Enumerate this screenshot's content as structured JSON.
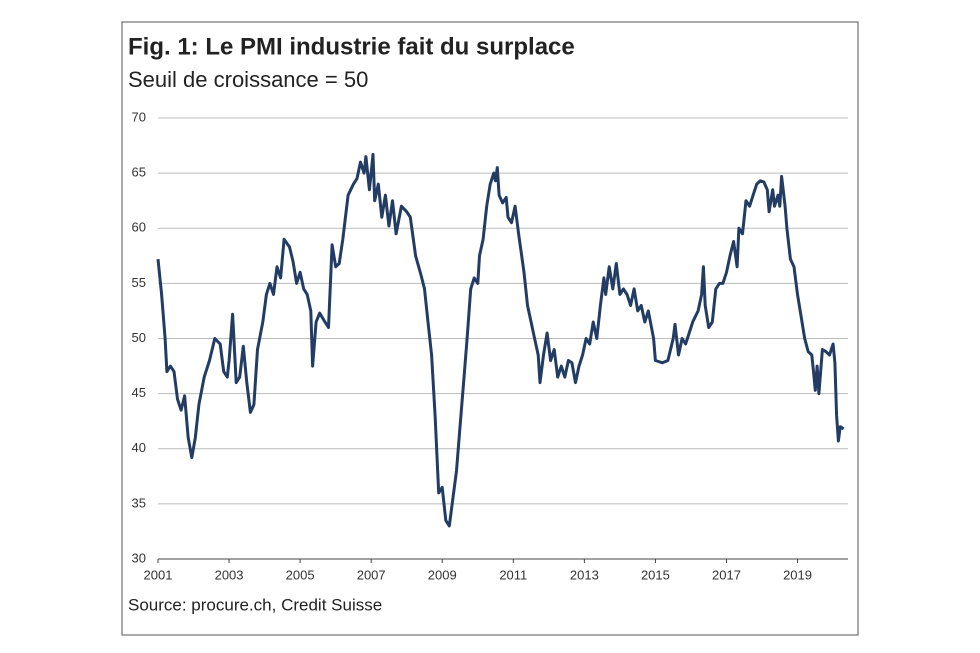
{
  "chart_data": {
    "type": "line",
    "title": "Fig. 1: Le PMI industrie fait du surplace",
    "subtitle": "Seuil de croissance = 50",
    "source": "Source: procure.ch, Credit Suisse",
    "x": [
      2001.0,
      2001.1,
      2001.2,
      2001.25,
      2001.35,
      2001.45,
      2001.55,
      2001.65,
      2001.75,
      2001.85,
      2001.95,
      2002.05,
      2002.15,
      2002.3,
      2002.45,
      2002.6,
      2002.75,
      2002.85,
      2002.95,
      2003.0,
      2003.1,
      2003.2,
      2003.3,
      2003.4,
      2003.5,
      2003.6,
      2003.7,
      2003.8,
      2003.95,
      2004.05,
      2004.15,
      2004.25,
      2004.35,
      2004.45,
      2004.55,
      2004.7,
      2004.8,
      2004.9,
      2005.0,
      2005.1,
      2005.2,
      2005.3,
      2005.35,
      2005.45,
      2005.55,
      2005.7,
      2005.8,
      2005.9,
      2006.0,
      2006.1,
      2006.2,
      2006.35,
      2006.5,
      2006.6,
      2006.7,
      2006.8,
      2006.85,
      2006.95,
      2007.05,
      2007.1,
      2007.2,
      2007.3,
      2007.4,
      2007.5,
      2007.6,
      2007.7,
      2007.85,
      2008.0,
      2008.1,
      2008.25,
      2008.4,
      2008.5,
      2008.6,
      2008.7,
      2008.8,
      2008.9,
      2009.0,
      2009.1,
      2009.2,
      2009.3,
      2009.4,
      2009.5,
      2009.6,
      2009.7,
      2009.8,
      2009.9,
      2010.0,
      2010.05,
      2010.15,
      2010.25,
      2010.35,
      2010.45,
      2010.5,
      2010.55,
      2010.6,
      2010.7,
      2010.8,
      2010.85,
      2010.95,
      2011.05,
      2011.15,
      2011.3,
      2011.4,
      2011.5,
      2011.6,
      2011.7,
      2011.75,
      2011.85,
      2011.95,
      2012.05,
      2012.15,
      2012.25,
      2012.35,
      2012.45,
      2012.55,
      2012.65,
      2012.75,
      2012.85,
      2012.95,
      2013.05,
      2013.15,
      2013.25,
      2013.35,
      2013.45,
      2013.55,
      2013.6,
      2013.7,
      2013.8,
      2013.9,
      2014.0,
      2014.1,
      2014.2,
      2014.3,
      2014.4,
      2014.5,
      2014.6,
      2014.7,
      2014.8,
      2014.95,
      2015.0,
      2015.2,
      2015.35,
      2015.5,
      2015.55,
      2015.65,
      2015.75,
      2015.85,
      2015.95,
      2016.05,
      2016.2,
      2016.3,
      2016.35,
      2016.4,
      2016.5,
      2016.6,
      2016.7,
      2016.8,
      2016.9,
      2017.0,
      2017.1,
      2017.2,
      2017.3,
      2017.35,
      2017.45,
      2017.55,
      2017.65,
      2017.75,
      2017.85,
      2017.95,
      2018.05,
      2018.15,
      2018.2,
      2018.3,
      2018.35,
      2018.45,
      2018.5,
      2018.55,
      2018.65,
      2018.7,
      2018.8,
      2018.9,
      2019.0,
      2019.1,
      2019.2,
      2019.3,
      2019.4,
      2019.45,
      2019.5,
      2019.55,
      2019.6,
      2019.7,
      2019.8,
      2019.9,
      2020.0,
      2020.05,
      2020.1,
      2020.15,
      2020.2,
      2020.3
    ],
    "series": [
      {
        "name": "PMI",
        "color": "#223c64",
        "values": [
          57.2,
          54,
          50,
          47,
          47.5,
          47,
          44.5,
          43.5,
          44.8,
          41,
          39.2,
          41,
          44,
          46.5,
          48,
          50,
          49.5,
          47,
          46.5,
          48,
          52.2,
          46,
          46.5,
          49.3,
          46,
          43.3,
          44,
          49,
          51.5,
          54,
          55,
          54,
          56.5,
          55.5,
          59,
          58.3,
          57,
          55,
          56,
          54.5,
          54,
          52.5,
          47.5,
          51.5,
          52.3,
          51.5,
          51,
          58.5,
          56.5,
          56.8,
          59,
          63,
          64,
          64.5,
          66,
          65,
          66.5,
          63.5,
          66.7,
          62.5,
          64,
          61,
          63,
          60.2,
          62.5,
          59.5,
          62,
          61.5,
          61,
          57.5,
          55.8,
          54.5,
          51.5,
          48.5,
          43,
          36,
          36.5,
          33.5,
          33,
          35.5,
          38,
          42,
          46,
          50,
          54.5,
          55.5,
          55,
          57.5,
          59,
          62,
          64,
          65,
          64.3,
          65.5,
          63,
          62.3,
          62.8,
          61,
          60.5,
          62,
          59.5,
          56,
          53,
          51.5,
          50,
          48.5,
          46,
          48.5,
          50.5,
          48,
          49,
          46.5,
          47.5,
          46.5,
          48,
          47.8,
          46,
          47.5,
          48.5,
          50,
          49.5,
          51.5,
          50,
          53,
          55.5,
          54,
          56.5,
          54.5,
          56.8,
          54,
          54.5,
          54,
          53,
          54.5,
          52.5,
          53,
          51.5,
          52.5,
          50,
          48,
          47.8,
          48,
          50,
          51.3,
          48.5,
          50,
          49.5,
          50.5,
          51.5,
          52.5,
          54,
          56.5,
          53,
          51,
          51.5,
          54.5,
          55,
          55,
          56,
          57.5,
          58.8,
          56.5,
          60,
          59.5,
          62.5,
          62,
          63,
          64,
          64.3,
          64.2,
          63.5,
          61.5,
          63.5,
          62,
          63,
          62,
          64.7,
          62,
          60,
          57.2,
          56.5,
          54,
          52,
          50,
          48.8,
          48.5,
          47,
          45.3,
          47.5,
          45,
          49,
          48.8,
          48.5,
          49.5,
          47.8,
          43,
          40.7,
          42,
          41.8
        ]
      }
    ],
    "xlim": [
      2001,
      2020.42
    ],
    "xticks": [
      2001,
      2003,
      2005,
      2007,
      2009,
      2011,
      2013,
      2015,
      2017,
      2019
    ],
    "ylim": [
      30,
      70
    ],
    "yticks": [
      30,
      35,
      40,
      45,
      50,
      55,
      60,
      65,
      70
    ],
    "grid": true
  }
}
